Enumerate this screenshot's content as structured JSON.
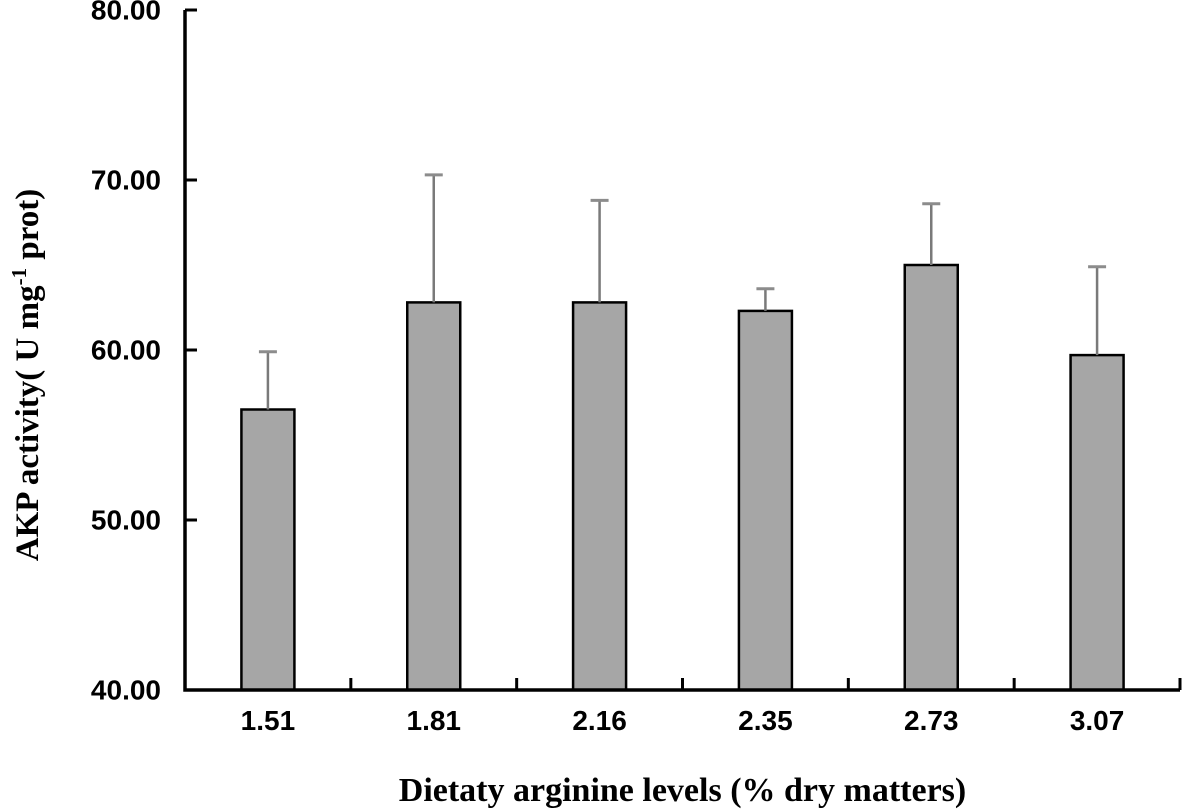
{
  "chart_data": {
    "type": "bar",
    "title": "",
    "categories": [
      "1.51",
      "1.81",
      "2.16",
      "2.35",
      "2.73",
      "3.07"
    ],
    "values": [
      56.5,
      62.8,
      62.8,
      62.3,
      65.0,
      59.7
    ],
    "errors_upper": [
      3.4,
      7.5,
      6.0,
      1.3,
      3.6,
      5.2
    ],
    "xlabel": "Dietaty arginine levels (% dry matters)",
    "ylabel": "AKP activity( U mg-1 prot)",
    "ylabel_parts": {
      "prefix": "AKP activity( U mg",
      "superscript": "-1",
      "suffix": " prot)"
    },
    "ylim": [
      40,
      80
    ],
    "ytick_step": 10,
    "ytick_labels": [
      "40.00",
      "50.00",
      "60.00",
      "70.00",
      "80.00"
    ],
    "grid": false,
    "legend": false,
    "error_bars": "upper-only",
    "colors": {
      "background": "#ffffff",
      "bar_fill": "#a6a6a6",
      "bar_stroke": "#000000",
      "error_bar": "#7a7a7a",
      "error_cap": "#8c8c8c",
      "axis": "#000000",
      "text": "#000000"
    }
  }
}
